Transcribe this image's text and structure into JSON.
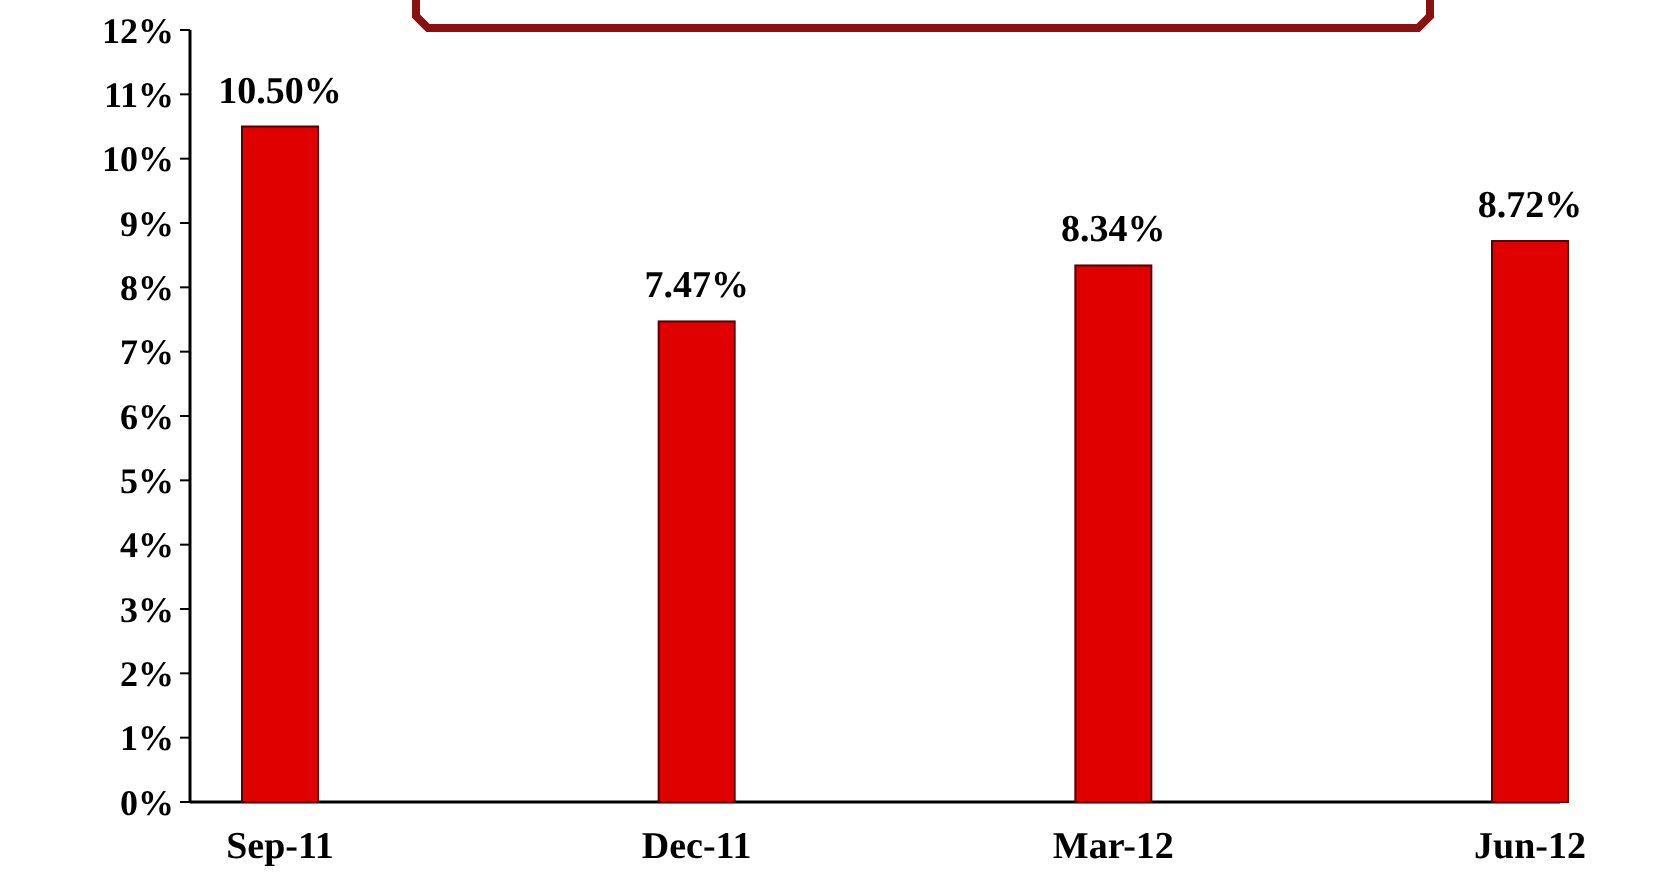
{
  "chart_data": {
    "type": "bar",
    "categories": [
      "Sep-11",
      "Dec-11",
      "Mar-12",
      "Jun-12"
    ],
    "values": [
      10.5,
      7.47,
      8.34,
      8.72
    ],
    "color": "#e00000",
    "value_labels": [
      "10.50%",
      "7.47%",
      "8.34%",
      "8.72%"
    ],
    "ylim": [
      0,
      12
    ],
    "yticks": [
      {
        "value": 0,
        "label": "0%"
      },
      {
        "value": 1,
        "label": "1%"
      },
      {
        "value": 2,
        "label": "2%"
      },
      {
        "value": 3,
        "label": "3%"
      },
      {
        "value": 4,
        "label": "4%"
      },
      {
        "value": 5,
        "label": "5%"
      },
      {
        "value": 6,
        "label": "6%"
      },
      {
        "value": 7,
        "label": "7%"
      },
      {
        "value": 8,
        "label": "8%"
      },
      {
        "value": 9,
        "label": "9%"
      },
      {
        "value": 10,
        "label": "10%"
      },
      {
        "value": 11,
        "label": "11%"
      },
      {
        "value": 12,
        "label": "12%"
      }
    ],
    "grid": false
  }
}
